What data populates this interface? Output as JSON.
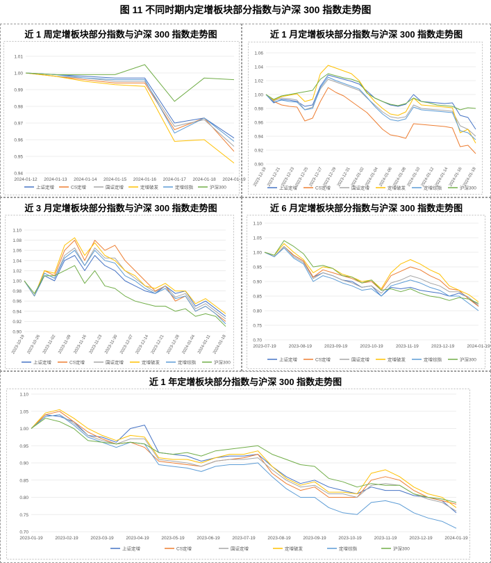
{
  "figure_title": "图 11  不同时期内定增板块部分指数与沪深 300 指数走势图",
  "series_names": [
    "上证定增",
    "CS定增",
    "国证定增",
    "定增破发",
    "定增综指",
    "沪深300"
  ],
  "colors": [
    "#4472c4",
    "#ed7d31",
    "#a5a5a5",
    "#ffc000",
    "#5b9bd5",
    "#70ad47"
  ],
  "chart_data": [
    {
      "id": "week",
      "type": "line",
      "title": "近 1 周定增板块部分指数与沪深 300 指数走势图",
      "categories": [
        "2024-01-12",
        "2024-01-13",
        "2024-01-14",
        "2024-01-15",
        "2024-01-16",
        "2024-01-17",
        "2024-01-18",
        "2024-01-19"
      ],
      "x_tick_labels": [
        "2024-01-12",
        "2024-01-13",
        "2024-01-14",
        "2024-01-15",
        "2024-01-16",
        "2024-01-17",
        "2024-01-18",
        "2024-01-19"
      ],
      "ylim": [
        0.94,
        1.01
      ],
      "y_ticks": [
        "0.94",
        "0.95",
        "0.96",
        "0.97",
        "0.98",
        "0.99",
        "1.00",
        "1.01"
      ],
      "series": [
        {
          "name": "上证定增",
          "values": [
            1.0,
            0.999,
            0.998,
            0.997,
            0.997,
            0.97,
            0.973,
            0.961
          ]
        },
        {
          "name": "CS定增",
          "values": [
            1.0,
            0.998,
            0.996,
            0.994,
            0.994,
            0.966,
            0.973,
            0.953
          ]
        },
        {
          "name": "国证定增",
          "values": [
            1.0,
            0.998,
            0.997,
            0.995,
            0.995,
            0.968,
            0.972,
            0.956
          ]
        },
        {
          "name": "定增破发",
          "values": [
            1.0,
            0.998,
            0.995,
            0.993,
            0.992,
            0.959,
            0.96,
            0.946
          ]
        },
        {
          "name": "定增综指",
          "values": [
            1.0,
            0.999,
            0.997,
            0.996,
            0.996,
            0.964,
            0.973,
            0.959
          ]
        },
        {
          "name": "沪深300",
          "values": [
            1.0,
            0.999,
            0.999,
            0.999,
            1.005,
            0.983,
            0.997,
            0.996
          ]
        }
      ]
    },
    {
      "id": "month",
      "type": "line",
      "title": "近 1 月定增板块部分指数与沪深 300 指数走势图",
      "x_tick_labels": [
        "2023-12-19",
        "2023-12-21",
        "2023-12-23",
        "2023-12-25",
        "2023-12-27",
        "2023-12-29",
        "2023-12-31",
        "2024-01-02",
        "2024-01-04",
        "2024-01-06",
        "2024-01-08",
        "2024-01-10",
        "2024-01-12",
        "2024-01-14",
        "2024-01-16",
        "2024-01-18"
      ],
      "ylim": [
        0.9,
        1.06
      ],
      "y_ticks": [
        "0.90",
        "0.92",
        "0.94",
        "0.96",
        "0.98",
        "1.00",
        "1.02",
        "1.04",
        "1.06"
      ],
      "series": [
        {
          "name": "上证定增",
          "values": [
            1.0,
            0.988,
            0.993,
            0.992,
            0.99,
            0.983,
            0.985,
            1.012,
            1.028,
            1.025,
            1.022,
            1.019,
            1.015,
            1.005,
            0.995,
            0.99,
            0.985,
            0.983,
            0.986,
            1.0,
            0.99,
            0.989,
            0.988,
            0.987,
            0.988,
            0.97,
            0.967,
            0.95
          ]
        },
        {
          "name": "CS定增",
          "values": [
            1.0,
            0.99,
            0.985,
            0.983,
            0.982,
            0.962,
            0.966,
            0.99,
            1.01,
            1.003,
            0.998,
            0.99,
            0.982,
            0.974,
            0.962,
            0.95,
            0.942,
            0.94,
            0.937,
            0.958,
            0.957,
            0.956,
            0.955,
            0.954,
            0.952,
            0.925,
            0.927,
            0.915
          ]
        },
        {
          "name": "国证定增",
          "values": [
            1.0,
            0.991,
            0.995,
            0.994,
            0.992,
            0.978,
            0.982,
            1.008,
            1.022,
            1.018,
            1.014,
            1.01,
            1.006,
            0.995,
            0.985,
            0.975,
            0.968,
            0.966,
            0.968,
            0.985,
            0.98,
            0.979,
            0.978,
            0.977,
            0.976,
            0.955,
            0.95,
            0.94
          ]
        },
        {
          "name": "定增破发",
          "values": [
            1.0,
            0.992,
            0.997,
            0.999,
            1.001,
            0.99,
            0.993,
            1.03,
            1.042,
            1.038,
            1.034,
            1.03,
            1.02,
            1.003,
            0.99,
            0.98,
            0.972,
            0.97,
            0.975,
            0.995,
            0.985,
            0.984,
            0.983,
            0.982,
            0.981,
            0.945,
            0.95,
            0.93
          ]
        },
        {
          "name": "定增综指",
          "values": [
            1.0,
            0.989,
            0.992,
            0.99,
            0.989,
            0.978,
            0.98,
            1.01,
            1.025,
            1.02,
            1.016,
            1.012,
            1.008,
            0.996,
            0.983,
            0.972,
            0.964,
            0.962,
            0.965,
            0.982,
            0.978,
            0.977,
            0.976,
            0.975,
            0.974,
            0.948,
            0.945,
            0.935
          ]
        },
        {
          "name": "沪深300",
          "values": [
            1.0,
            0.993,
            0.998,
            1.0,
            1.002,
            1.004,
            1.006,
            1.022,
            1.03,
            1.027,
            1.024,
            1.022,
            1.018,
            1.002,
            0.995,
            0.99,
            0.986,
            0.984,
            0.987,
            0.995,
            0.99,
            0.988,
            0.985,
            0.984,
            0.983,
            0.978,
            0.981,
            0.98
          ]
        }
      ]
    },
    {
      "id": "quarter",
      "type": "line",
      "title": "近 3 月定增板块部分指数与沪深 300 指数走势图",
      "x_tick_labels": [
        "2023-10-19",
        "2023-10-26",
        "2023-11-02",
        "2023-11-09",
        "2023-11-16",
        "2023-11-23",
        "2023-11-30",
        "2023-12-07",
        "2023-12-14",
        "2023-12-21",
        "2023-12-28",
        "2024-01-04",
        "2024-01-11",
        "2024-01-18"
      ],
      "ylim": [
        0.9,
        1.1
      ],
      "y_ticks": [
        "0.90",
        "0.92",
        "0.94",
        "0.96",
        "0.98",
        "1.00",
        "1.02",
        "1.04",
        "1.06",
        "1.08",
        "1.10"
      ],
      "series": [
        {
          "name": "上证定增",
          "values": [
            1.0,
            0.97,
            1.01,
            1.0,
            1.04,
            1.05,
            1.02,
            1.05,
            1.03,
            1.02,
            1.0,
            0.99,
            0.98,
            0.975,
            0.99,
            0.975,
            0.98,
            0.95,
            0.96,
            0.945,
            0.93
          ]
        },
        {
          "name": "CS定增",
          "values": [
            1.0,
            0.97,
            1.02,
            1.01,
            1.06,
            1.08,
            1.04,
            1.08,
            1.06,
            1.07,
            1.04,
            1.02,
            1.0,
            0.98,
            0.99,
            0.96,
            0.97,
            0.94,
            0.95,
            0.935,
            0.92
          ]
        },
        {
          "name": "国证定增",
          "values": [
            1.0,
            0.97,
            1.015,
            1.005,
            1.05,
            1.065,
            1.03,
            1.065,
            1.045,
            1.045,
            1.02,
            1.005,
            0.99,
            0.978,
            0.99,
            0.968,
            0.975,
            0.945,
            0.955,
            0.94,
            0.925
          ]
        },
        {
          "name": "定增破发",
          "values": [
            1.0,
            0.97,
            1.02,
            1.015,
            1.07,
            1.085,
            1.05,
            1.075,
            1.05,
            1.04,
            1.02,
            1.01,
            0.99,
            0.985,
            0.995,
            0.98,
            0.98,
            0.955,
            0.965,
            0.95,
            0.935
          ]
        },
        {
          "name": "定增综指",
          "values": [
            1.0,
            0.97,
            1.015,
            1.005,
            1.045,
            1.06,
            1.03,
            1.06,
            1.04,
            1.035,
            1.01,
            1.0,
            0.985,
            0.975,
            0.985,
            0.965,
            0.97,
            0.94,
            0.95,
            0.935,
            0.915
          ]
        },
        {
          "name": "沪深300",
          "values": [
            1.0,
            0.975,
            1.01,
            1.01,
            1.02,
            1.03,
            0.995,
            1.02,
            0.99,
            0.985,
            0.97,
            0.96,
            0.955,
            0.95,
            0.95,
            0.94,
            0.945,
            0.93,
            0.935,
            0.93,
            0.91
          ]
        }
      ]
    },
    {
      "id": "half",
      "type": "line",
      "title": "近 6 月定增板块部分指数与沪深 300 指数走势图",
      "x_tick_labels": [
        "2023-07-19",
        "2023-08-19",
        "2023-09-19",
        "2023-10-19",
        "2023-11-19",
        "2023-12-19",
        "2024-01-19"
      ],
      "ylim": [
        0.7,
        1.1
      ],
      "y_ticks": [
        "0.70",
        "0.75",
        "0.80",
        "0.85",
        "0.90",
        "0.95",
        "1.00",
        "1.05",
        "1.10"
      ],
      "series": [
        {
          "name": "上证定增",
          "values": [
            1.0,
            0.985,
            1.02,
            0.99,
            0.97,
            0.915,
            0.93,
            0.92,
            0.905,
            0.9,
            0.88,
            0.885,
            0.85,
            0.88,
            0.875,
            0.88,
            0.87,
            0.865,
            0.86,
            0.85,
            0.86,
            0.845,
            0.815
          ]
        },
        {
          "name": "CS定增",
          "values": [
            1.0,
            0.985,
            1.02,
            0.99,
            0.97,
            0.915,
            0.94,
            0.93,
            0.92,
            0.91,
            0.895,
            0.9,
            0.87,
            0.92,
            0.935,
            0.95,
            0.94,
            0.92,
            0.905,
            0.875,
            0.87,
            0.84,
            0.815
          ]
        },
        {
          "name": "国证定增",
          "values": [
            1.0,
            0.985,
            1.02,
            0.985,
            0.965,
            0.91,
            0.93,
            0.92,
            0.905,
            0.895,
            0.88,
            0.885,
            0.86,
            0.895,
            0.905,
            0.92,
            0.91,
            0.895,
            0.885,
            0.865,
            0.865,
            0.845,
            0.82
          ]
        },
        {
          "name": "定增破发",
          "values": [
            1.0,
            0.99,
            1.03,
            1.0,
            0.975,
            0.93,
            0.95,
            0.945,
            0.925,
            0.915,
            0.9,
            0.905,
            0.875,
            0.93,
            0.96,
            0.975,
            0.96,
            0.94,
            0.925,
            0.885,
            0.87,
            0.855,
            0.83
          ]
        },
        {
          "name": "定增综指",
          "values": [
            1.0,
            0.985,
            1.015,
            0.98,
            0.96,
            0.9,
            0.92,
            0.91,
            0.895,
            0.885,
            0.87,
            0.875,
            0.85,
            0.885,
            0.895,
            0.905,
            0.895,
            0.88,
            0.87,
            0.85,
            0.85,
            0.825,
            0.8
          ]
        },
        {
          "name": "沪深300",
          "values": [
            1.0,
            0.99,
            1.04,
            1.02,
            0.995,
            0.95,
            0.955,
            0.945,
            0.92,
            0.915,
            0.895,
            0.905,
            0.87,
            0.875,
            0.865,
            0.875,
            0.86,
            0.85,
            0.845,
            0.835,
            0.845,
            0.84,
            0.825
          ]
        }
      ]
    },
    {
      "id": "year",
      "type": "line",
      "title": "近 1 年定增板块部分指数与沪深 300 指数走势图",
      "x_tick_labels": [
        "2023-01-19",
        "2023-02-19",
        "2023-03-19",
        "2023-04-19",
        "2023-05-19",
        "2023-06-19",
        "2023-07-19",
        "2023-08-19",
        "2023-09-19",
        "2023-10-19",
        "2023-11-19",
        "2023-12-19",
        "2024-01-19"
      ],
      "ylim": [
        0.7,
        1.1
      ],
      "y_ticks": [
        "0.70",
        "0.75",
        "0.80",
        "0.85",
        "0.90",
        "0.95",
        "1.00",
        "1.05",
        "1.10"
      ],
      "series": [
        {
          "name": "上证定增",
          "values": [
            1.0,
            1.04,
            1.035,
            1.02,
            0.98,
            0.975,
            0.96,
            1.0,
            1.01,
            0.93,
            0.925,
            0.92,
            0.905,
            0.915,
            0.92,
            0.92,
            0.925,
            0.89,
            0.86,
            0.84,
            0.85,
            0.83,
            0.82,
            0.81,
            0.83,
            0.82,
            0.82,
            0.805,
            0.8,
            0.79,
            0.755
          ]
        },
        {
          "name": "CS定增",
          "values": [
            1.0,
            1.04,
            1.05,
            1.02,
            0.99,
            0.97,
            0.955,
            0.96,
            0.945,
            0.905,
            0.9,
            0.895,
            0.89,
            0.905,
            0.91,
            0.915,
            0.925,
            0.87,
            0.84,
            0.82,
            0.83,
            0.8,
            0.8,
            0.8,
            0.85,
            0.86,
            0.85,
            0.82,
            0.8,
            0.79,
            0.78
          ]
        },
        {
          "name": "国证定增",
          "values": [
            1.0,
            1.035,
            1.04,
            1.015,
            0.98,
            0.965,
            0.955,
            0.97,
            0.97,
            0.91,
            0.905,
            0.9,
            0.89,
            0.905,
            0.91,
            0.91,
            0.915,
            0.88,
            0.85,
            0.83,
            0.835,
            0.81,
            0.81,
            0.8,
            0.835,
            0.84,
            0.835,
            0.81,
            0.795,
            0.785,
            0.76
          ]
        },
        {
          "name": "定增破发",
          "values": [
            1.0,
            1.045,
            1.055,
            1.03,
            1.0,
            0.98,
            0.965,
            0.98,
            0.975,
            0.915,
            0.91,
            0.91,
            0.9,
            0.915,
            0.925,
            0.925,
            0.935,
            0.89,
            0.855,
            0.835,
            0.845,
            0.815,
            0.815,
            0.81,
            0.87,
            0.88,
            0.86,
            0.83,
            0.81,
            0.8,
            0.77
          ]
        },
        {
          "name": "定增综指",
          "values": [
            1.0,
            1.035,
            1.04,
            1.01,
            0.975,
            0.96,
            0.945,
            0.96,
            0.955,
            0.895,
            0.89,
            0.885,
            0.875,
            0.89,
            0.895,
            0.895,
            0.9,
            0.86,
            0.825,
            0.8,
            0.8,
            0.77,
            0.755,
            0.75,
            0.785,
            0.79,
            0.78,
            0.755,
            0.74,
            0.73,
            0.71
          ]
        },
        {
          "name": "沪深300",
          "values": [
            1.0,
            1.03,
            1.02,
            1.0,
            0.965,
            0.96,
            0.955,
            0.96,
            0.955,
            0.93,
            0.925,
            0.93,
            0.92,
            0.935,
            0.94,
            0.945,
            0.95,
            0.925,
            0.91,
            0.895,
            0.89,
            0.855,
            0.845,
            0.83,
            0.84,
            0.835,
            0.835,
            0.81,
            0.8,
            0.795,
            0.785
          ]
        }
      ]
    }
  ]
}
